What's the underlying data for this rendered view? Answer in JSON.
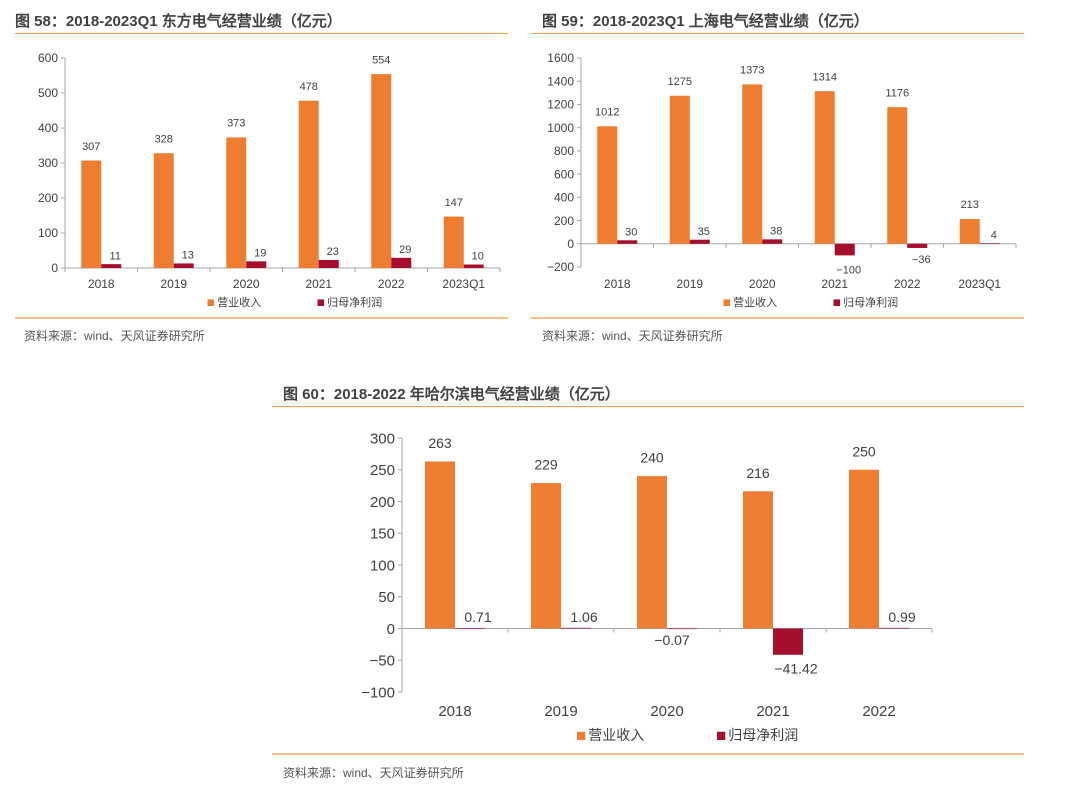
{
  "colors": {
    "revenue": "#ED7D31",
    "profit": "#A50F2D",
    "axis": "#A6A6A6",
    "rule": "#F0A050"
  },
  "source_label": "资料来源：wind、天风证券研究所",
  "chart_data": [
    {
      "id": "fig58",
      "type": "bar",
      "title": "图 58：2018-2023Q1 东方电气经营业绩（亿元）",
      "categories": [
        "2018",
        "2019",
        "2020",
        "2021",
        "2022",
        "2023Q1"
      ],
      "series": [
        {
          "name": "营业收入",
          "values": [
            307,
            328,
            373,
            478,
            554,
            147
          ],
          "labels": [
            "307",
            "328",
            "373",
            "478",
            "554",
            "147"
          ]
        },
        {
          "name": "归母净利润",
          "values": [
            11,
            13,
            19,
            23,
            29,
            10
          ],
          "labels": [
            "11",
            "13",
            "19",
            "23",
            "29",
            "10"
          ]
        }
      ],
      "ylim": [
        0,
        600
      ],
      "yticks": [
        0,
        100,
        200,
        300,
        400,
        500,
        600
      ],
      "ytick_labels": [
        "0",
        "100",
        "200",
        "300",
        "400",
        "500",
        "600"
      ],
      "xlabel": "",
      "ylabel": "",
      "grid": false,
      "legend": "bottom-center",
      "source": "资料来源：wind、天风证券研究所"
    },
    {
      "id": "fig59",
      "type": "bar",
      "title": "图 59：2018-2023Q1 上海电气经营业绩（亿元）",
      "categories": [
        "2018",
        "2019",
        "2020",
        "2021",
        "2022",
        "2023Q1"
      ],
      "series": [
        {
          "name": "营业收入",
          "values": [
            1012,
            1275,
            1373,
            1314,
            1176,
            213
          ],
          "labels": [
            "1012",
            "1275",
            "1373",
            "1314",
            "1176",
            "213"
          ]
        },
        {
          "name": "归母净利润",
          "values": [
            30,
            35,
            38,
            -100,
            -36,
            4
          ],
          "labels": [
            "30",
            "35",
            "38",
            "−100",
            "−36",
            "4"
          ]
        }
      ],
      "ylim": [
        -200,
        1600
      ],
      "yticks": [
        -200,
        0,
        200,
        400,
        600,
        800,
        1000,
        1200,
        1400,
        1600
      ],
      "ytick_labels": [
        "−200",
        "0",
        "200",
        "400",
        "600",
        "800",
        "1000",
        "1200",
        "1400",
        "1600"
      ],
      "xlabel": "",
      "ylabel": "",
      "grid": false,
      "legend": "bottom-center",
      "source": "资料来源：wind、天风证券研究所"
    },
    {
      "id": "fig60",
      "type": "bar",
      "title": "图 60：2018-2022 年哈尔滨电气经营业绩（亿元）",
      "categories": [
        "2018",
        "2019",
        "2020",
        "2021",
        "2022"
      ],
      "series": [
        {
          "name": "营业收入",
          "values": [
            263,
            229,
            240,
            216,
            250
          ],
          "labels": [
            "263",
            "229",
            "240",
            "216",
            "250"
          ]
        },
        {
          "name": "归母净利润",
          "values": [
            0.71,
            1.06,
            -0.07,
            -41.42,
            0.99
          ],
          "labels": [
            "0.71",
            "1.06",
            "−0.07",
            "−41.42",
            "0.99"
          ]
        }
      ],
      "ylim": [
        -100,
        300
      ],
      "yticks": [
        -100,
        -50,
        0,
        50,
        100,
        150,
        200,
        250,
        300
      ],
      "ytick_labels": [
        "−100",
        "−50",
        "0",
        "50",
        "100",
        "150",
        "200",
        "250",
        "300"
      ],
      "xlabel": "",
      "ylabel": "",
      "grid": false,
      "legend": "bottom-center",
      "source": "资料来源：wind、天风证券研究所"
    }
  ]
}
